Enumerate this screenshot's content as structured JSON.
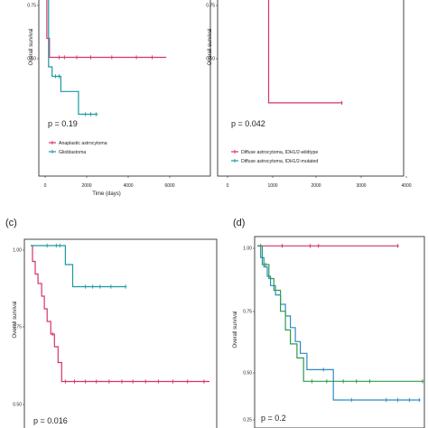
{
  "chart_data": [
    {
      "id": "a",
      "type": "line",
      "panel_label": "",
      "xlabel": "Time (days)",
      "ylabel": "Overall survival",
      "p_value": "p = 0.19",
      "x_ticks": [
        "0",
        "2000",
        "4000",
        "6000"
      ],
      "y_ticks": [
        "0.50",
        "0.75"
      ],
      "xlim": [
        0,
        7200
      ],
      "ylim": [
        0.0,
        1.0
      ],
      "series": [
        {
          "name": "Anaplastic astrocytoma",
          "color": "#d6336c",
          "steps": [
            [
              0,
              1.0
            ],
            [
              200,
              1.0
            ],
            [
              200,
              0.75
            ],
            [
              350,
              0.75
            ],
            [
              350,
              0.65
            ],
            [
              7000,
              0.65
            ]
          ],
          "censor": [
            [
              900,
              0.65
            ],
            [
              1200,
              0.65
            ],
            [
              1900,
              0.65
            ],
            [
              2700,
              0.65
            ],
            [
              3900,
              0.65
            ],
            [
              5300,
              0.65
            ],
            [
              6200,
              0.65
            ]
          ]
        },
        {
          "name": "Glioblastoma",
          "color": "#1a9aa0",
          "steps": [
            [
              0,
              1.0
            ],
            [
              300,
              1.0
            ],
            [
              300,
              0.6
            ],
            [
              500,
              0.6
            ],
            [
              500,
              0.55
            ],
            [
              1000,
              0.55
            ],
            [
              1000,
              0.47
            ],
            [
              2000,
              0.47
            ],
            [
              2000,
              0.35
            ],
            [
              3100,
              0.35
            ]
          ],
          "censor": [
            [
              700,
              0.55
            ],
            [
              900,
              0.55
            ],
            [
              2400,
              0.35
            ],
            [
              2700,
              0.35
            ],
            [
              3000,
              0.35
            ]
          ]
        }
      ],
      "legend": [
        "Anaplastic astrocytoma",
        "Glioblastoma"
      ]
    },
    {
      "id": "b",
      "type": "line",
      "panel_label": "",
      "xlabel": "",
      "ylabel": "Overall survival",
      "p_value": "p = 0.042",
      "x_ticks": [
        "0",
        "1000",
        "2000",
        "3000",
        "4000"
      ],
      "y_ticks": [
        "0.50",
        "0.75"
      ],
      "xlim": [
        0,
        4200
      ],
      "ylim": [
        0.0,
        1.0
      ],
      "series": [
        {
          "name": "Diffuse astrocytoma, IDH1/2-wildtype",
          "color": "#d6336c",
          "steps": [
            [
              0,
              1.0
            ],
            [
              1050,
              1.0
            ],
            [
              1050,
              0.41
            ],
            [
              2700,
              0.41
            ]
          ],
          "censor": [
            [
              2700,
              0.41
            ]
          ]
        },
        {
          "name": "Diffuse astrocytoma, IDH1/2-mutated",
          "color": "#1a9aa0",
          "steps": [],
          "censor": []
        }
      ],
      "legend": [
        "Diffuse astrocytoma, IDH1/2-wildtype",
        "Diffuse astrocytoma, IDH1/2-mutated"
      ]
    },
    {
      "id": "c",
      "type": "line",
      "panel_label": "(c)",
      "xlabel": "",
      "ylabel": "Overall survival",
      "p_value": "p = 0.016",
      "x_ticks": [],
      "y_ticks": [
        "0.50",
        "0.75",
        "1.00"
      ],
      "xlim": [
        0,
        1.0
      ],
      "ylim": [
        0.42,
        1.02
      ],
      "series": [
        {
          "name": "",
          "color": "#d6336c",
          "steps": [
            [
              0,
              1.0
            ],
            [
              0.01,
              1.0
            ],
            [
              0.01,
              0.95
            ],
            [
              0.025,
              0.95
            ],
            [
              0.025,
              0.91
            ],
            [
              0.04,
              0.91
            ],
            [
              0.04,
              0.88
            ],
            [
              0.06,
              0.88
            ],
            [
              0.06,
              0.84
            ],
            [
              0.075,
              0.84
            ],
            [
              0.075,
              0.8
            ],
            [
              0.09,
              0.8
            ],
            [
              0.09,
              0.76
            ],
            [
              0.11,
              0.76
            ],
            [
              0.11,
              0.72
            ],
            [
              0.13,
              0.72
            ],
            [
              0.13,
              0.68
            ],
            [
              0.15,
              0.68
            ],
            [
              0.15,
              0.63
            ],
            [
              0.17,
              0.63
            ],
            [
              0.17,
              0.57
            ],
            [
              0.98,
              0.57
            ]
          ],
          "censor": [
            [
              0.12,
              0.72
            ],
            [
              0.19,
              0.57
            ],
            [
              0.24,
              0.57
            ],
            [
              0.3,
              0.57
            ],
            [
              0.36,
              0.57
            ],
            [
              0.43,
              0.57
            ],
            [
              0.5,
              0.57
            ],
            [
              0.56,
              0.57
            ],
            [
              0.63,
              0.57
            ],
            [
              0.7,
              0.57
            ],
            [
              0.78,
              0.57
            ],
            [
              0.86,
              0.57
            ],
            [
              0.95,
              0.57
            ]
          ]
        },
        {
          "name": "",
          "color": "#1a9aa0",
          "steps": [
            [
              0,
              1.0
            ],
            [
              0.19,
              1.0
            ],
            [
              0.19,
              0.94
            ],
            [
              0.23,
              0.94
            ],
            [
              0.23,
              0.87
            ],
            [
              0.52,
              0.87
            ]
          ],
          "censor": [
            [
              0.09,
              1.0
            ],
            [
              0.14,
              1.0
            ],
            [
              0.16,
              1.0
            ],
            [
              0.3,
              0.87
            ],
            [
              0.34,
              0.87
            ],
            [
              0.38,
              0.87
            ],
            [
              0.44,
              0.87
            ],
            [
              0.52,
              0.87
            ]
          ]
        }
      ],
      "legend": []
    },
    {
      "id": "d",
      "type": "line",
      "panel_label": "(d)",
      "xlabel": "",
      "ylabel": "Overall survival",
      "p_value": "p = 0.2",
      "x_ticks": [],
      "y_ticks": [
        "0.25",
        "0.50",
        "0.75",
        "1.00"
      ],
      "xlim": [
        0,
        1.0
      ],
      "ylim": [
        0.22,
        1.04
      ],
      "series": [
        {
          "name": "",
          "color": "#d6336c",
          "steps": [
            [
              0,
              1.0
            ],
            [
              0.85,
              1.0
            ]
          ],
          "censor": [
            [
              0.02,
              1.0
            ],
            [
              0.15,
              1.0
            ],
            [
              0.32,
              1.0
            ],
            [
              0.37,
              1.0
            ],
            [
              0.85,
              1.0
            ]
          ]
        },
        {
          "name": "",
          "color": "#2f8ac4",
          "steps": [
            [
              0,
              1.0
            ],
            [
              0.02,
              1.0
            ],
            [
              0.02,
              0.95
            ],
            [
              0.04,
              0.95
            ],
            [
              0.04,
              0.91
            ],
            [
              0.06,
              0.91
            ],
            [
              0.06,
              0.87
            ],
            [
              0.08,
              0.87
            ],
            [
              0.08,
              0.83
            ],
            [
              0.11,
              0.83
            ],
            [
              0.11,
              0.79
            ],
            [
              0.14,
              0.79
            ],
            [
              0.14,
              0.75
            ],
            [
              0.17,
              0.75
            ],
            [
              0.17,
              0.7
            ],
            [
              0.2,
              0.7
            ],
            [
              0.2,
              0.65
            ],
            [
              0.23,
              0.65
            ],
            [
              0.23,
              0.59
            ],
            [
              0.26,
              0.59
            ],
            [
              0.26,
              0.54
            ],
            [
              0.3,
              0.54
            ],
            [
              0.3,
              0.47
            ],
            [
              0.46,
              0.47
            ],
            [
              0.46,
              0.34
            ],
            [
              0.98,
              0.34
            ]
          ],
          "censor": [
            [
              0.03,
              0.95
            ],
            [
              0.07,
              0.87
            ],
            [
              0.4,
              0.47
            ],
            [
              0.57,
              0.34
            ],
            [
              0.78,
              0.34
            ],
            [
              0.85,
              0.34
            ],
            [
              0.92,
              0.34
            ],
            [
              0.98,
              0.34
            ]
          ]
        },
        {
          "name": "",
          "color": "#2e9c4b",
          "steps": [
            [
              0,
              1.0
            ],
            [
              0.03,
              1.0
            ],
            [
              0.03,
              0.92
            ],
            [
              0.07,
              0.92
            ],
            [
              0.07,
              0.86
            ],
            [
              0.1,
              0.86
            ],
            [
              0.1,
              0.81
            ],
            [
              0.14,
              0.81
            ],
            [
              0.14,
              0.72
            ],
            [
              0.17,
              0.72
            ],
            [
              0.17,
              0.64
            ],
            [
              0.2,
              0.64
            ],
            [
              0.2,
              0.58
            ],
            [
              0.24,
              0.58
            ],
            [
              0.24,
              0.52
            ],
            [
              0.28,
              0.52
            ],
            [
              0.28,
              0.42
            ],
            [
              1.0,
              0.42
            ]
          ],
          "censor": [
            [
              0.05,
              0.92
            ],
            [
              0.33,
              0.42
            ],
            [
              0.42,
              0.42
            ],
            [
              0.52,
              0.42
            ],
            [
              0.6,
              0.42
            ],
            [
              0.68,
              0.42
            ],
            [
              1.0,
              0.42
            ]
          ]
        }
      ],
      "legend": []
    }
  ]
}
